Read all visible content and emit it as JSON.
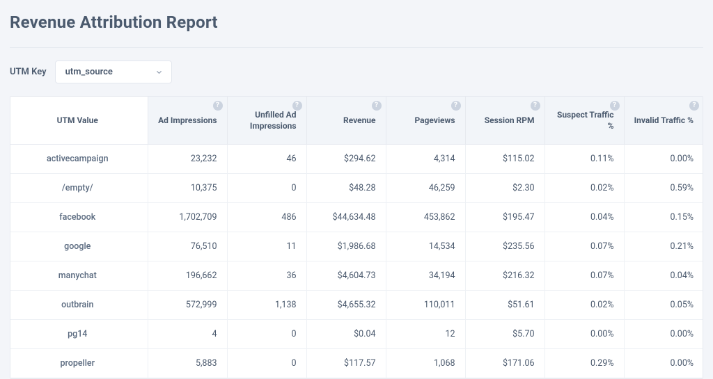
{
  "page": {
    "title": "Revenue Attribution Report"
  },
  "filter": {
    "label": "UTM Key",
    "selected": "utm_source"
  },
  "table": {
    "columns": [
      {
        "label": "UTM Value",
        "help": false,
        "first": true
      },
      {
        "label": "Ad Impressions",
        "help": true
      },
      {
        "label": "Unfilled Ad Impressions",
        "help": true
      },
      {
        "label": "Revenue",
        "help": true
      },
      {
        "label": "Pageviews",
        "help": true
      },
      {
        "label": "Session RPM",
        "help": true
      },
      {
        "label": "Suspect Traffic %",
        "help": true
      },
      {
        "label": "Invalid Traffic %",
        "help": true
      }
    ],
    "rows": [
      {
        "name": "activecampaign",
        "cells": [
          "23,232",
          "46",
          "$294.62",
          "4,314",
          "$115.02",
          "0.11%",
          "0.00%"
        ]
      },
      {
        "name": "/empty/",
        "cells": [
          "10,375",
          "0",
          "$48.28",
          "46,259",
          "$2.30",
          "0.02%",
          "0.59%"
        ]
      },
      {
        "name": "facebook",
        "cells": [
          "1,702,709",
          "486",
          "$44,634.48",
          "453,862",
          "$195.47",
          "0.04%",
          "0.15%"
        ]
      },
      {
        "name": "google",
        "cells": [
          "76,510",
          "11",
          "$1,986.68",
          "14,534",
          "$235.56",
          "0.07%",
          "0.21%"
        ]
      },
      {
        "name": "manychat",
        "cells": [
          "196,662",
          "36",
          "$4,604.73",
          "34,194",
          "$216.32",
          "0.07%",
          "0.04%"
        ]
      },
      {
        "name": "outbrain",
        "cells": [
          "572,999",
          "1,138",
          "$4,655.32",
          "110,011",
          "$51.61",
          "0.02%",
          "0.05%"
        ]
      },
      {
        "name": "pg14",
        "cells": [
          "4",
          "0",
          "$0.04",
          "12",
          "$5.70",
          "0.00%",
          "0.00%"
        ]
      },
      {
        "name": "propeller",
        "cells": [
          "5,883",
          "0",
          "$117.57",
          "1,068",
          "$171.06",
          "0.29%",
          "0.00%"
        ]
      }
    ]
  },
  "style": {
    "page_bg": "#f3f5f9",
    "card_bg": "#ffffff",
    "border": "#e6e9ef",
    "header_bg": "#f2f5f9",
    "text": "#4b5a6e",
    "help_bg": "#cbd3df"
  }
}
